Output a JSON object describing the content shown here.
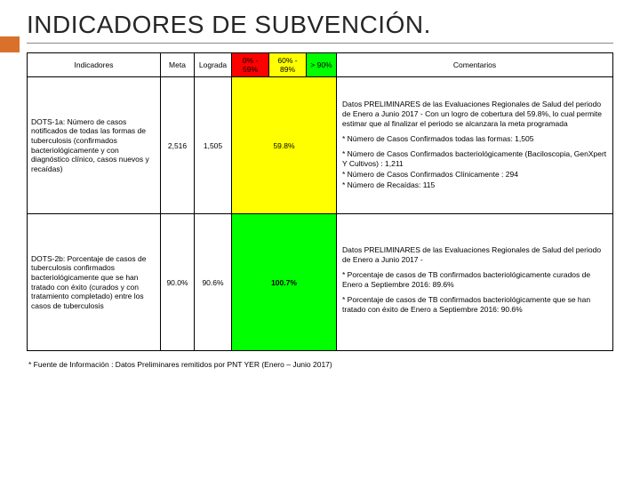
{
  "title": "INDICADORES DE SUBVENCIÓN.",
  "accent_color": "#d9712b",
  "headers": {
    "indicadores": "Indicadores",
    "meta": "Meta",
    "lograda": "Lograda",
    "range1": "0% - 59%",
    "range2": "60% - 89%",
    "range3": "> 90%",
    "comentarios": "Comentarios"
  },
  "header_colors": {
    "range1": "#ff0000",
    "range2": "#ffff00",
    "range3": "#00ff00"
  },
  "rows": [
    {
      "indicator": "DOTS-1a: Número de casos notificados de todas las formas de tuberculosis (confirmados bacteriológicamente y con diagnóstico clínico, casos nuevos y recaídas)",
      "meta": "2,516",
      "lograda": "1,505",
      "value": "59.8%",
      "value_band": "yellow",
      "comments_intro": "Datos PRELIMINARES de las Evaluaciones Regionales de Salud del periodo de Enero a Junio 2017 - Con un logro de cobertura del 59.8%, lo cual permite estimar que al finalizar el periodo se alcanzara la meta programada",
      "comments_bullets": [
        "* Número de Casos Confirmados todas las formas: 1,505",
        "* Número de Casos Confirmados bacteriológicamente (Baciloscopia, GenXpert Y Cultivos) : 1,211",
        "* Número de Casos Confirmados Clínicamente : 294",
        "* Número de Recaídas: 115"
      ]
    },
    {
      "indicator": "DOTS-2b: Porcentaje de casos de tuberculosis confirmados bacteriológicamente que se han tratado con éxito (curados y con tratamiento completado) entre los casos de tuberculosis",
      "meta": "90.0%",
      "lograda": "90.6%",
      "value": "100.7%",
      "value_band": "green",
      "comments_intro": "Datos PRELIMINARES de las Evaluaciones Regionales de Salud del periodo de Enero a Junio 2017 -",
      "comments_bullets": [
        "* Porcentaje de casos de TB confirmados bacteriológicamente curados de Enero a Septiembre 2016: 89.6%",
        "* Porcentaje de casos de TB confirmados bacteriológicamente que se han tratado con éxito de Enero a Septiembre 2016: 90.6%"
      ]
    }
  ],
  "footnote": "* Fuente de Información : Datos Preliminares remitidos por PNT YER (Enero – Junio 2017)"
}
